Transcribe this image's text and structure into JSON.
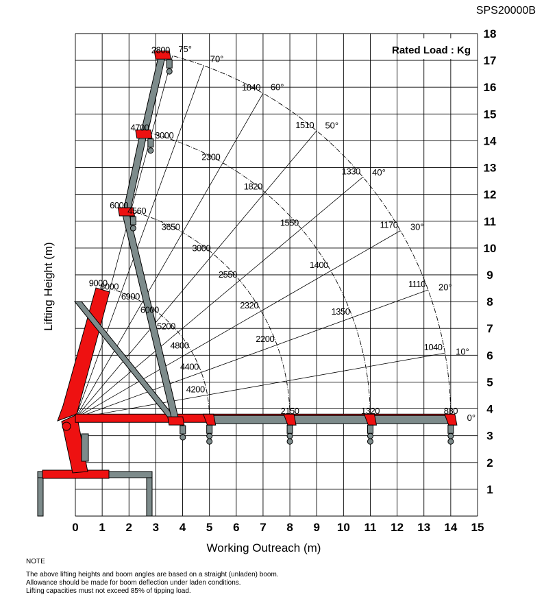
{
  "model": "SPS20000B",
  "rated_load_label": "Rated Load : Kg",
  "note": {
    "heading": "NOTE",
    "lines": [
      "The above lifting heights and boom angles are based on a straight (unladen) boom.",
      "Allowance should be made for boom deflection under laden conditions.",
      "Lifting capacities must not exceed 85% of tipping load."
    ]
  },
  "colors": {
    "boom_red": "#ee1111",
    "boom_gray": "#7d8b8b",
    "grid": "#000000"
  },
  "chart_data": {
    "type": "load-chart",
    "title": "SPS20000B",
    "xlabel": "Working Outreach (m)",
    "ylabel": "Lifting Height (m)",
    "xlim": [
      0,
      15
    ],
    "ylim": [
      0,
      18
    ],
    "x_ticks": [
      0,
      1,
      2,
      3,
      4,
      5,
      6,
      7,
      8,
      9,
      10,
      11,
      12,
      13,
      14,
      15
    ],
    "y_ticks": [
      1,
      2,
      3,
      4,
      5,
      6,
      7,
      8,
      9,
      10,
      11,
      12,
      13,
      14,
      15,
      16,
      17,
      18
    ],
    "grid": true,
    "pivot": [
      0,
      3.65
    ],
    "boom_angles": [
      {
        "label": "0°",
        "angle": 0
      },
      {
        "label": "10°",
        "angle": 10
      },
      {
        "label": "20°",
        "angle": 20
      },
      {
        "label": "30°",
        "angle": 30
      },
      {
        "label": "40°",
        "angle": 40
      },
      {
        "label": "50°",
        "angle": 50
      },
      {
        "label": "60°",
        "angle": 60
      },
      {
        "label": "70°",
        "angle": 70
      },
      {
        "label": "75°",
        "angle": 75
      }
    ],
    "boom_extensions": [
      {
        "reach": 5.0,
        "tip": [
          3.7,
          3.5
        ],
        "loads": [
          {
            "angle": 75,
            "value": 9000
          },
          {
            "angle": 70,
            "value": 8000
          },
          {
            "angle": 60,
            "value": 6900
          },
          {
            "angle": 50,
            "value": 6000
          },
          {
            "angle": 40,
            "value": 5200
          },
          {
            "angle": 30,
            "value": 4800
          },
          {
            "angle": 20,
            "value": 4400
          },
          {
            "angle": 10,
            "value": 4200
          }
        ]
      },
      {
        "reach": 8.0,
        "tip": [
          1.85,
          11.3
        ],
        "loads": [
          {
            "angle": 75,
            "value": 6000
          },
          {
            "angle": 70,
            "value": 4560
          },
          {
            "angle": 60,
            "value": 3650
          },
          {
            "angle": 50,
            "value": 3000
          },
          {
            "angle": 40,
            "value": 2550
          },
          {
            "angle": 30,
            "value": 2320
          },
          {
            "angle": 20,
            "value": 2200
          },
          {
            "angle": 0,
            "value": 2150
          }
        ]
      },
      {
        "reach": 11.0,
        "tip": [
          2.5,
          14.2
        ],
        "loads": [
          {
            "angle": 75,
            "value": 4700
          },
          {
            "angle": 70,
            "value": 3000
          },
          {
            "angle": 60,
            "value": 2300
          },
          {
            "angle": 50,
            "value": 1820
          },
          {
            "angle": 40,
            "value": 1550
          },
          {
            "angle": 30,
            "value": 1400
          },
          {
            "angle": 20,
            "value": 1350
          },
          {
            "angle": 0,
            "value": 1320
          }
        ]
      },
      {
        "reach": 14.0,
        "tip": [
          3.2,
          17.15
        ],
        "loads": [
          {
            "angle": 75,
            "value": 2800
          },
          {
            "angle": 60,
            "value": 1840
          },
          {
            "angle": 50,
            "value": 1510
          },
          {
            "angle": 40,
            "value": 1330
          },
          {
            "angle": 30,
            "value": 1170
          },
          {
            "angle": 20,
            "value": 1110
          },
          {
            "angle": 10,
            "value": 1040
          },
          {
            "angle": 0,
            "value": 880
          }
        ]
      }
    ]
  }
}
